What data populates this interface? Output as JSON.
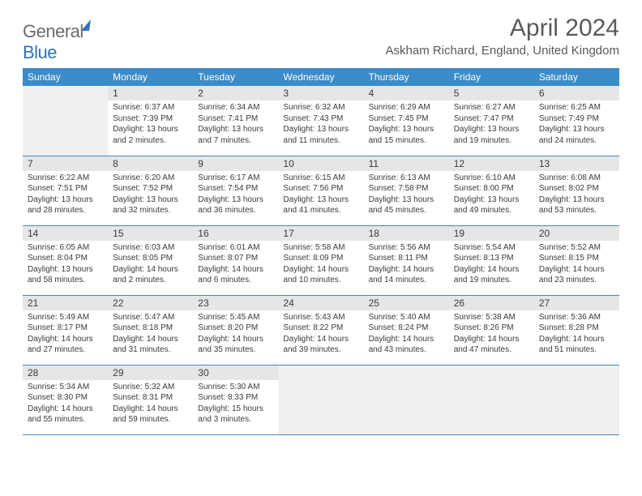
{
  "logo": {
    "text_general": "General",
    "text_blue": "Blue"
  },
  "title": "April 2024",
  "location": "Askham Richard, England, United Kingdom",
  "colors": {
    "header_bg": "#3b8bc9",
    "header_fg": "#ffffff",
    "daynum_bg": "#e6e6e6",
    "empty_bg": "#f0f0f0",
    "border": "#3b8bc9",
    "text": "#3a3a3a",
    "title_color": "#595959",
    "logo_gray": "#6b6b6b",
    "logo_blue": "#2e75b6"
  },
  "weekdays": [
    "Sunday",
    "Monday",
    "Tuesday",
    "Wednesday",
    "Thursday",
    "Friday",
    "Saturday"
  ],
  "weeks": [
    [
      null,
      {
        "n": "1",
        "sunrise": "Sunrise: 6:37 AM",
        "sunset": "Sunset: 7:39 PM",
        "daylight": "Daylight: 13 hours and 2 minutes."
      },
      {
        "n": "2",
        "sunrise": "Sunrise: 6:34 AM",
        "sunset": "Sunset: 7:41 PM",
        "daylight": "Daylight: 13 hours and 7 minutes."
      },
      {
        "n": "3",
        "sunrise": "Sunrise: 6:32 AM",
        "sunset": "Sunset: 7:43 PM",
        "daylight": "Daylight: 13 hours and 11 minutes."
      },
      {
        "n": "4",
        "sunrise": "Sunrise: 6:29 AM",
        "sunset": "Sunset: 7:45 PM",
        "daylight": "Daylight: 13 hours and 15 minutes."
      },
      {
        "n": "5",
        "sunrise": "Sunrise: 6:27 AM",
        "sunset": "Sunset: 7:47 PM",
        "daylight": "Daylight: 13 hours and 19 minutes."
      },
      {
        "n": "6",
        "sunrise": "Sunrise: 6:25 AM",
        "sunset": "Sunset: 7:49 PM",
        "daylight": "Daylight: 13 hours and 24 minutes."
      }
    ],
    [
      {
        "n": "7",
        "sunrise": "Sunrise: 6:22 AM",
        "sunset": "Sunset: 7:51 PM",
        "daylight": "Daylight: 13 hours and 28 minutes."
      },
      {
        "n": "8",
        "sunrise": "Sunrise: 6:20 AM",
        "sunset": "Sunset: 7:52 PM",
        "daylight": "Daylight: 13 hours and 32 minutes."
      },
      {
        "n": "9",
        "sunrise": "Sunrise: 6:17 AM",
        "sunset": "Sunset: 7:54 PM",
        "daylight": "Daylight: 13 hours and 36 minutes."
      },
      {
        "n": "10",
        "sunrise": "Sunrise: 6:15 AM",
        "sunset": "Sunset: 7:56 PM",
        "daylight": "Daylight: 13 hours and 41 minutes."
      },
      {
        "n": "11",
        "sunrise": "Sunrise: 6:13 AM",
        "sunset": "Sunset: 7:58 PM",
        "daylight": "Daylight: 13 hours and 45 minutes."
      },
      {
        "n": "12",
        "sunrise": "Sunrise: 6:10 AM",
        "sunset": "Sunset: 8:00 PM",
        "daylight": "Daylight: 13 hours and 49 minutes."
      },
      {
        "n": "13",
        "sunrise": "Sunrise: 6:08 AM",
        "sunset": "Sunset: 8:02 PM",
        "daylight": "Daylight: 13 hours and 53 minutes."
      }
    ],
    [
      {
        "n": "14",
        "sunrise": "Sunrise: 6:05 AM",
        "sunset": "Sunset: 8:04 PM",
        "daylight": "Daylight: 13 hours and 58 minutes."
      },
      {
        "n": "15",
        "sunrise": "Sunrise: 6:03 AM",
        "sunset": "Sunset: 8:05 PM",
        "daylight": "Daylight: 14 hours and 2 minutes."
      },
      {
        "n": "16",
        "sunrise": "Sunrise: 6:01 AM",
        "sunset": "Sunset: 8:07 PM",
        "daylight": "Daylight: 14 hours and 6 minutes."
      },
      {
        "n": "17",
        "sunrise": "Sunrise: 5:58 AM",
        "sunset": "Sunset: 8:09 PM",
        "daylight": "Daylight: 14 hours and 10 minutes."
      },
      {
        "n": "18",
        "sunrise": "Sunrise: 5:56 AM",
        "sunset": "Sunset: 8:11 PM",
        "daylight": "Daylight: 14 hours and 14 minutes."
      },
      {
        "n": "19",
        "sunrise": "Sunrise: 5:54 AM",
        "sunset": "Sunset: 8:13 PM",
        "daylight": "Daylight: 14 hours and 19 minutes."
      },
      {
        "n": "20",
        "sunrise": "Sunrise: 5:52 AM",
        "sunset": "Sunset: 8:15 PM",
        "daylight": "Daylight: 14 hours and 23 minutes."
      }
    ],
    [
      {
        "n": "21",
        "sunrise": "Sunrise: 5:49 AM",
        "sunset": "Sunset: 8:17 PM",
        "daylight": "Daylight: 14 hours and 27 minutes."
      },
      {
        "n": "22",
        "sunrise": "Sunrise: 5:47 AM",
        "sunset": "Sunset: 8:18 PM",
        "daylight": "Daylight: 14 hours and 31 minutes."
      },
      {
        "n": "23",
        "sunrise": "Sunrise: 5:45 AM",
        "sunset": "Sunset: 8:20 PM",
        "daylight": "Daylight: 14 hours and 35 minutes."
      },
      {
        "n": "24",
        "sunrise": "Sunrise: 5:43 AM",
        "sunset": "Sunset: 8:22 PM",
        "daylight": "Daylight: 14 hours and 39 minutes."
      },
      {
        "n": "25",
        "sunrise": "Sunrise: 5:40 AM",
        "sunset": "Sunset: 8:24 PM",
        "daylight": "Daylight: 14 hours and 43 minutes."
      },
      {
        "n": "26",
        "sunrise": "Sunrise: 5:38 AM",
        "sunset": "Sunset: 8:26 PM",
        "daylight": "Daylight: 14 hours and 47 minutes."
      },
      {
        "n": "27",
        "sunrise": "Sunrise: 5:36 AM",
        "sunset": "Sunset: 8:28 PM",
        "daylight": "Daylight: 14 hours and 51 minutes."
      }
    ],
    [
      {
        "n": "28",
        "sunrise": "Sunrise: 5:34 AM",
        "sunset": "Sunset: 8:30 PM",
        "daylight": "Daylight: 14 hours and 55 minutes."
      },
      {
        "n": "29",
        "sunrise": "Sunrise: 5:32 AM",
        "sunset": "Sunset: 8:31 PM",
        "daylight": "Daylight: 14 hours and 59 minutes."
      },
      {
        "n": "30",
        "sunrise": "Sunrise: 5:30 AM",
        "sunset": "Sunset: 8:33 PM",
        "daylight": "Daylight: 15 hours and 3 minutes."
      },
      null,
      null,
      null,
      null
    ]
  ]
}
